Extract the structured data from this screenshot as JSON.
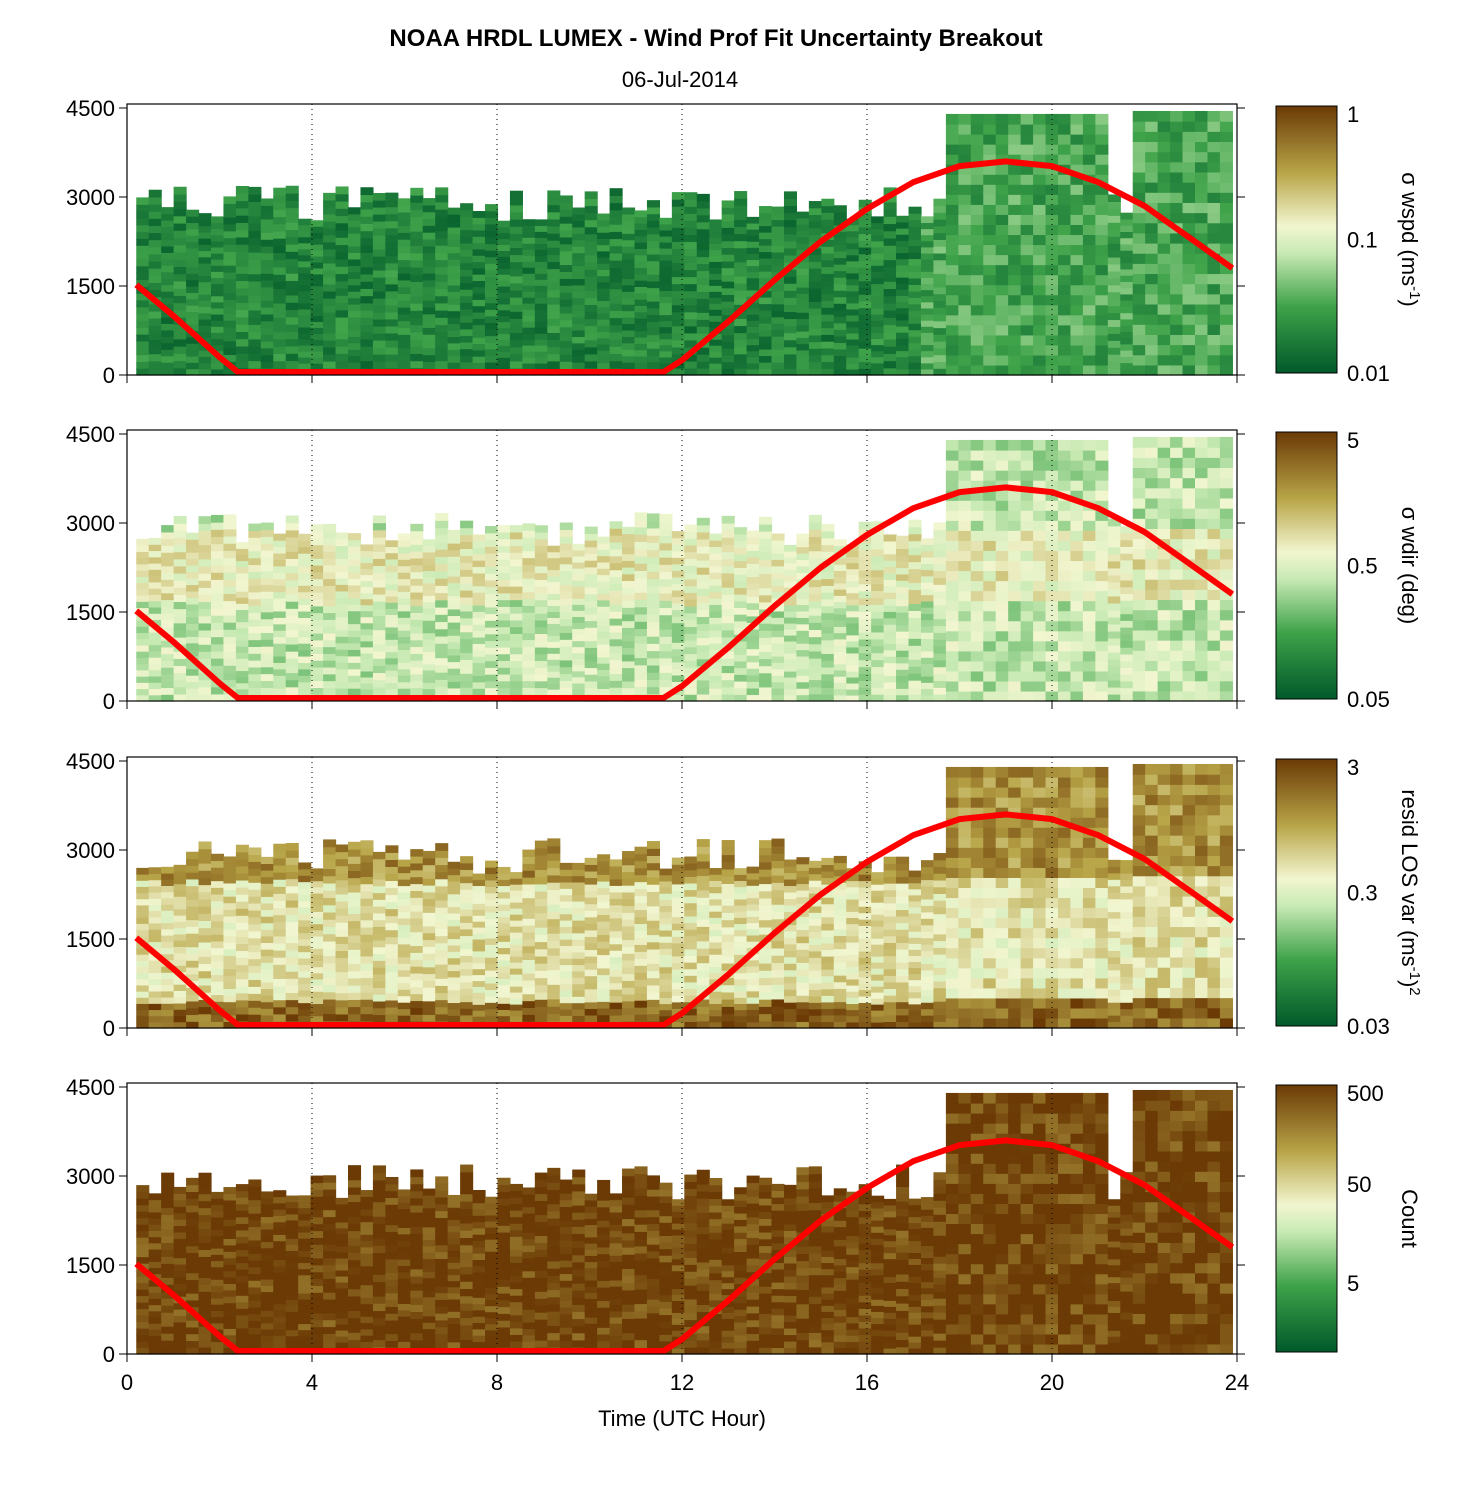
{
  "figure": {
    "title": "NOAA HRDL LUMEX - Wind Prof Fit Uncertainty Breakout",
    "subtitle": "06-Jul-2014",
    "xlabel": "Time (UTC Hour)"
  },
  "chart_data": [
    {
      "type": "heatmap",
      "name": "wspd-uncertainty",
      "colorbar_label": "σ wspd (ms",
      "colorbar_label_sup": "-1",
      "colorbar_label_tail": ")",
      "colorbar_ticks": [
        "1",
        "0.1",
        "0.01"
      ],
      "colorbar_range": [
        0.01,
        1
      ],
      "colorbar_scale": "log",
      "colormap": "green-to-brown",
      "dominant_level": 0.15,
      "xlim": [
        0,
        24
      ],
      "ylim": [
        0,
        4500
      ],
      "yticks": [
        "0",
        "1500",
        "3000",
        "4500"
      ]
    },
    {
      "type": "heatmap",
      "name": "wdir-uncertainty",
      "colorbar_label": "σ wdir (deg)",
      "colorbar_ticks": [
        "5",
        "0.5",
        "0.05"
      ],
      "colorbar_range": [
        0.05,
        5
      ],
      "colorbar_scale": "log",
      "colormap": "green-to-brown",
      "dominant_level": 0.45,
      "xlim": [
        0,
        24
      ],
      "ylim": [
        0,
        4500
      ],
      "yticks": [
        "0",
        "1500",
        "3000",
        "4500"
      ]
    },
    {
      "type": "heatmap",
      "name": "resid-los-var",
      "colorbar_label": "resid LOS var (ms",
      "colorbar_label_sup": "-1",
      "colorbar_label_tail": ")",
      "colorbar_label_sup2": "2",
      "colorbar_ticks": [
        "3",
        "0.3",
        "0.03"
      ],
      "colorbar_range": [
        0.03,
        3
      ],
      "colorbar_scale": "log",
      "colormap": "green-to-brown",
      "dominant_level": 0.6,
      "xlim": [
        0,
        24
      ],
      "ylim": [
        0,
        4500
      ],
      "yticks": [
        "0",
        "1500",
        "3000",
        "4500"
      ]
    },
    {
      "type": "heatmap",
      "name": "count",
      "colorbar_label": "Count",
      "colorbar_ticks": [
        "500",
        "50",
        "5"
      ],
      "colorbar_range": [
        1,
        500
      ],
      "colorbar_scale": "log",
      "colormap": "green-to-brown",
      "dominant_level": 0.98,
      "xlim": [
        0,
        24
      ],
      "ylim": [
        0,
        4500
      ],
      "yticks": [
        "0",
        "1500",
        "3000",
        "4500"
      ]
    }
  ],
  "xticks": [
    "0",
    "4",
    "8",
    "12",
    "16",
    "20",
    "24"
  ],
  "gridlines_x": [
    4,
    8,
    12,
    16,
    20,
    24
  ],
  "boundary_layer_line": {
    "color": "#ff0000",
    "x": [
      0.2,
      1.0,
      2.0,
      2.4,
      4,
      8,
      11.6,
      12.0,
      13,
      14,
      15,
      16,
      17,
      18,
      19,
      20,
      21,
      22,
      23,
      23.9
    ],
    "y": [
      1520,
      1000,
      300,
      50,
      50,
      50,
      50,
      250,
      900,
      1600,
      2250,
      2800,
      3250,
      3520,
      3600,
      3520,
      3250,
      2850,
      2300,
      1800
    ]
  },
  "colors": {
    "dark_green": "#00592a",
    "light": "#f2f6d0",
    "dark_brown": "#6b3a05",
    "line": "#ff0000"
  }
}
